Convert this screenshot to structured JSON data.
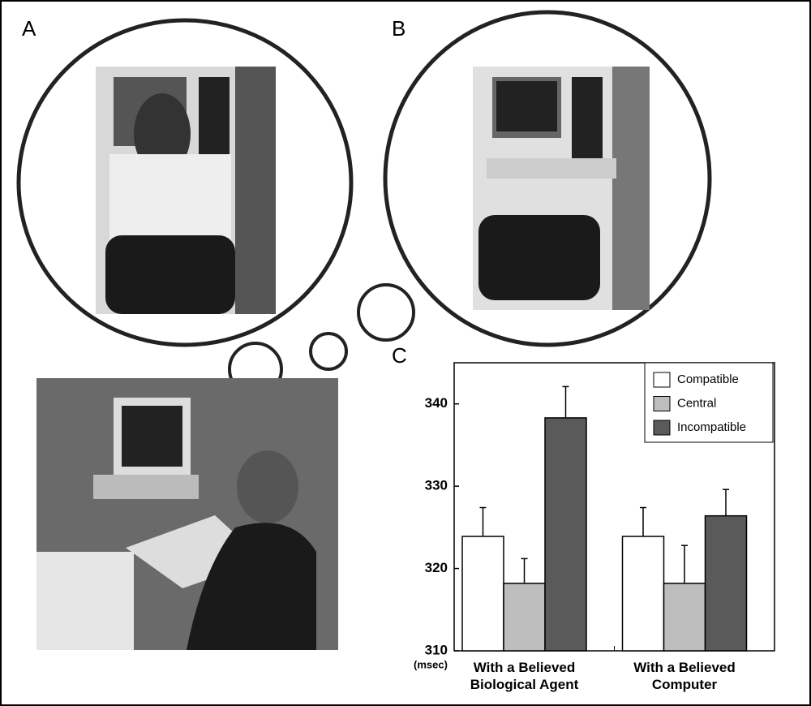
{
  "panels": {
    "a": "A",
    "b": "B",
    "c": "C"
  },
  "chart_data": {
    "type": "bar",
    "y_label": "(msec)",
    "categories": [
      "With a Believed Biological Agent",
      "With a Believed Computer"
    ],
    "series": [
      {
        "name": "Compatible",
        "color": "#ffffff",
        "values": [
          323.9,
          323.9
        ],
        "errors": [
          3.5,
          3.5
        ]
      },
      {
        "name": "Central",
        "color": "#bdbdbd",
        "values": [
          318.2,
          318.2
        ],
        "errors": [
          3.0,
          4.6
        ]
      },
      {
        "name": "Incompatible",
        "color": "#5a5a5a",
        "values": [
          338.3,
          326.4
        ],
        "errors": [
          3.8,
          3.2
        ]
      }
    ],
    "ylim": [
      310,
      345
    ],
    "yticks": [
      310,
      320,
      330,
      340
    ],
    "legend": "upper-right"
  }
}
